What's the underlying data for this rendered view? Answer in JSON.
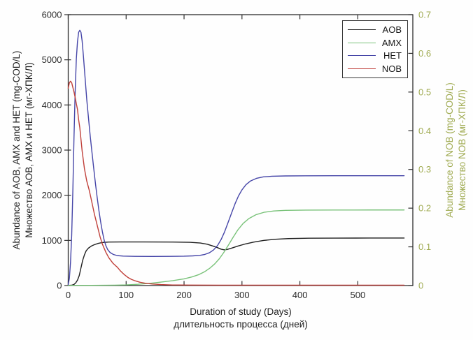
{
  "figure": {
    "background": "#fefefe"
  },
  "chart_data": {
    "type": "line",
    "title": "",
    "grid": false,
    "x_axis": {
      "label_en": "Duration of study (Days)",
      "label_ru": "длительность процесса (дней)",
      "min": 0,
      "max": 595,
      "ticks": [
        0,
        100,
        200,
        300,
        400,
        500
      ],
      "color": "#2e2e2e"
    },
    "y_axis_left": {
      "label_en": "Abundance of AOB, AMX and HET (mg-COD/L)",
      "label_ru": "Множество АОВ, АМХ и НЕТ (мг-ХПК/Л)",
      "min": 0,
      "max": 6000,
      "ticks": [
        0,
        1000,
        2000,
        3000,
        4000,
        5000,
        6000
      ],
      "color": "#2e2e2e"
    },
    "y_axis_right": {
      "label_en": "Abundance of NOB (mg-COD/L)",
      "label_ru": "Множество NOB (мг-ХПК/Л)",
      "min": 0,
      "max": 0.7,
      "ticks": [
        0,
        0.1,
        0.2,
        0.3,
        0.4,
        0.5,
        0.6,
        0.7
      ],
      "color": "#a0ab52"
    },
    "legend": {
      "position": "top-right",
      "entries": [
        "AOB",
        "AMX",
        "HET",
        "NOB"
      ]
    },
    "series": [
      {
        "name": "AOB",
        "axis": "left",
        "color": "#1f1f1f",
        "points": [
          [
            0,
            3
          ],
          [
            6,
            8
          ],
          [
            10,
            25
          ],
          [
            13,
            60
          ],
          [
            16,
            120
          ],
          [
            19,
            220
          ],
          [
            22,
            390
          ],
          [
            25,
            560
          ],
          [
            28,
            680
          ],
          [
            31,
            770
          ],
          [
            35,
            830
          ],
          [
            40,
            875
          ],
          [
            45,
            905
          ],
          [
            52,
            935
          ],
          [
            60,
            955
          ],
          [
            70,
            963
          ],
          [
            90,
            966
          ],
          [
            130,
            966
          ],
          [
            180,
            963
          ],
          [
            210,
            957
          ],
          [
            228,
            942
          ],
          [
            240,
            915
          ],
          [
            250,
            875
          ],
          [
            258,
            838
          ],
          [
            264,
            805
          ],
          [
            269,
            792
          ],
          [
            274,
            797
          ],
          [
            283,
            832
          ],
          [
            293,
            875
          ],
          [
            306,
            922
          ],
          [
            320,
            962
          ],
          [
            338,
            1000
          ],
          [
            358,
            1025
          ],
          [
            380,
            1040
          ],
          [
            415,
            1048
          ],
          [
            460,
            1051
          ],
          [
            520,
            1052
          ],
          [
            580,
            1052
          ]
        ]
      },
      {
        "name": "AMX",
        "axis": "left",
        "color": "#79c279",
        "points": [
          [
            0,
            2
          ],
          [
            40,
            4
          ],
          [
            80,
            8
          ],
          [
            100,
            14
          ],
          [
            120,
            28
          ],
          [
            140,
            48
          ],
          [
            160,
            76
          ],
          [
            180,
            108
          ],
          [
            200,
            148
          ],
          [
            214,
            192
          ],
          [
            226,
            245
          ],
          [
            236,
            310
          ],
          [
            245,
            390
          ],
          [
            253,
            480
          ],
          [
            261,
            595
          ],
          [
            269,
            740
          ],
          [
            277,
            905
          ],
          [
            285,
            1075
          ],
          [
            293,
            1235
          ],
          [
            302,
            1375
          ],
          [
            312,
            1485
          ],
          [
            324,
            1568
          ],
          [
            338,
            1622
          ],
          [
            355,
            1652
          ],
          [
            375,
            1665
          ],
          [
            410,
            1671
          ],
          [
            460,
            1673
          ],
          [
            520,
            1674
          ],
          [
            580,
            1674
          ]
        ]
      },
      {
        "name": "HET",
        "axis": "left",
        "color": "#4646a8",
        "points": [
          [
            0,
            25
          ],
          [
            2,
            160
          ],
          [
            4,
            520
          ],
          [
            6,
            1120
          ],
          [
            8,
            2100
          ],
          [
            10,
            3300
          ],
          [
            12,
            4300
          ],
          [
            14,
            5020
          ],
          [
            16,
            5400
          ],
          [
            18,
            5610
          ],
          [
            20,
            5655
          ],
          [
            22,
            5610
          ],
          [
            24,
            5420
          ],
          [
            26,
            5120
          ],
          [
            29,
            4620
          ],
          [
            32,
            4120
          ],
          [
            35,
            3710
          ],
          [
            38,
            3310
          ],
          [
            41,
            2950
          ],
          [
            44,
            2600
          ],
          [
            47,
            2260
          ],
          [
            50,
            1950
          ],
          [
            53,
            1660
          ],
          [
            56,
            1410
          ],
          [
            59,
            1190
          ],
          [
            62,
            1010
          ],
          [
            65,
            885
          ],
          [
            68,
            800
          ],
          [
            72,
            735
          ],
          [
            78,
            688
          ],
          [
            85,
            663
          ],
          [
            95,
            652
          ],
          [
            115,
            647
          ],
          [
            145,
            645
          ],
          [
            175,
            646
          ],
          [
            200,
            650
          ],
          [
            215,
            657
          ],
          [
            227,
            668
          ],
          [
            236,
            690
          ],
          [
            244,
            728
          ],
          [
            251,
            790
          ],
          [
            258,
            890
          ],
          [
            264,
            1020
          ],
          [
            270,
            1190
          ],
          [
            276,
            1395
          ],
          [
            282,
            1605
          ],
          [
            288,
            1810
          ],
          [
            294,
            1985
          ],
          [
            300,
            2120
          ],
          [
            307,
            2235
          ],
          [
            315,
            2318
          ],
          [
            325,
            2374
          ],
          [
            337,
            2407
          ],
          [
            352,
            2421
          ],
          [
            375,
            2428
          ],
          [
            410,
            2431
          ],
          [
            460,
            2432
          ],
          [
            520,
            2433
          ],
          [
            580,
            2433
          ]
        ]
      },
      {
        "name": "NOB",
        "axis": "right",
        "color": "#c0403a",
        "points": [
          [
            0,
            0.51
          ],
          [
            2,
            0.524
          ],
          [
            4,
            0.528
          ],
          [
            6,
            0.524
          ],
          [
            8,
            0.512
          ],
          [
            10,
            0.5
          ],
          [
            12,
            0.486
          ],
          [
            14,
            0.47
          ],
          [
            16,
            0.455
          ],
          [
            18,
            0.428
          ],
          [
            20,
            0.408
          ],
          [
            22,
            0.378
          ],
          [
            24,
            0.348
          ],
          [
            28,
            0.302
          ],
          [
            32,
            0.27
          ],
          [
            36,
            0.248
          ],
          [
            39,
            0.228
          ],
          [
            45,
            0.186
          ],
          [
            50,
            0.156
          ],
          [
            55,
            0.126
          ],
          [
            59,
            0.107
          ],
          [
            65,
            0.086
          ],
          [
            70,
            0.072
          ],
          [
            77,
            0.058
          ],
          [
            85,
            0.047
          ],
          [
            90,
            0.038
          ],
          [
            97,
            0.028
          ],
          [
            103,
            0.021
          ],
          [
            109,
            0.016
          ],
          [
            116,
            0.012
          ],
          [
            124,
            0.0085
          ],
          [
            133,
            0.006
          ],
          [
            145,
            0.004
          ],
          [
            160,
            0.0025
          ],
          [
            180,
            0.0015
          ],
          [
            210,
            0.0012
          ],
          [
            260,
            0.001
          ],
          [
            330,
            0.001
          ],
          [
            420,
            0.001
          ],
          [
            510,
            0.001
          ],
          [
            580,
            0.001
          ]
        ]
      }
    ]
  }
}
